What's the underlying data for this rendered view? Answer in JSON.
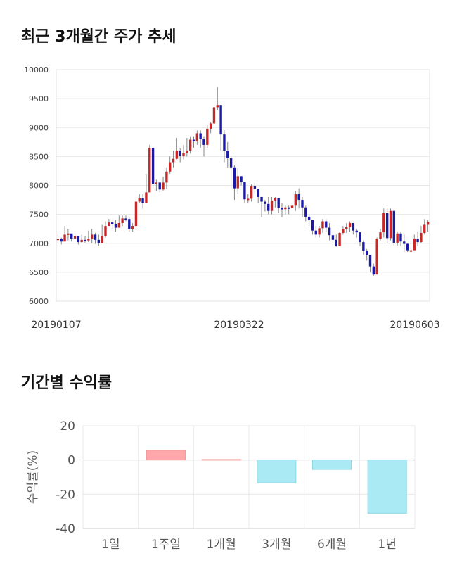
{
  "sections": {
    "price_title": "최근 3개월간 주가 추세",
    "returns_title": "기간별 수익률"
  },
  "chart_data": [
    {
      "type": "candlestick",
      "title": "최근 3개월간 주가 추세",
      "ylim": [
        6000,
        10000
      ],
      "yticks": [
        6000,
        6500,
        7000,
        7500,
        8000,
        8500,
        9000,
        9500,
        10000
      ],
      "x_labels": [
        "20190107",
        "20190322",
        "20190603"
      ],
      "grid": true,
      "colors": {
        "up": "#c62828",
        "down": "#1a1aa6",
        "wick": "#888888"
      },
      "close": [
        7080,
        7030,
        7150,
        7170,
        7080,
        7120,
        7020,
        7060,
        7050,
        7080,
        7150,
        7060,
        7000,
        7120,
        7300,
        7360,
        7330,
        7270,
        7350,
        7430,
        7420,
        7250,
        7300,
        7720,
        7780,
        7700,
        7880,
        8650,
        8030,
        8050,
        7930,
        8050,
        8240,
        8400,
        8460,
        8600,
        8510,
        8560,
        8600,
        8790,
        8760,
        8900,
        8800,
        8700,
        8980,
        9070,
        9350,
        9390,
        8880,
        8600,
        8470,
        8300,
        7950,
        8160,
        8060,
        7760,
        7770,
        7990,
        7940,
        7800,
        7720,
        7680,
        7560,
        7740,
        7780,
        7610,
        7590,
        7620,
        7610,
        7650,
        7850,
        7750,
        7620,
        7460,
        7400,
        7220,
        7150,
        7260,
        7380,
        7270,
        7140,
        7060,
        6950,
        7180,
        7250,
        7280,
        7350,
        7220,
        7190,
        7020,
        6870,
        6800,
        6600,
        6460,
        7080,
        7190,
        7520,
        7090,
        7560,
        7010,
        7170,
        7030,
        6990,
        6880,
        6880,
        7080,
        7020,
        7180,
        7320,
        7370
      ],
      "low": [
        7000,
        6980,
        7060,
        7050,
        7030,
        7030,
        6980,
        7000,
        7010,
        7020,
        7000,
        6990,
        6950,
        7000,
        7100,
        7300,
        7250,
        7200,
        7280,
        7300,
        7380,
        7200,
        7200,
        7250,
        7700,
        7600,
        7800,
        7950,
        7950,
        7900,
        7880,
        7900,
        7940,
        8200,
        8300,
        8450,
        8400,
        8450,
        8500,
        8550,
        8650,
        8700,
        8650,
        8500,
        8650,
        8900,
        9000,
        9300,
        8600,
        8400,
        8300,
        7950,
        7750,
        7850,
        8000,
        7700,
        7700,
        7720,
        7850,
        7700,
        7450,
        7550,
        7500,
        7500,
        7620,
        7520,
        7450,
        7500,
        7500,
        7520,
        7560,
        7600,
        7450,
        7380,
        7300,
        7150,
        7100,
        7100,
        7180,
        7200,
        7050,
        6950,
        6940,
        6970,
        7150,
        7180,
        7200,
        7150,
        7100,
        6950,
        6800,
        6700,
        6500,
        6440,
        6900,
        7050,
        7100,
        7000,
        7050,
        6950,
        6960,
        6950,
        6850,
        6850,
        6860,
        6900,
        6950,
        7000,
        7150,
        7200
      ],
      "high": [
        7150,
        7100,
        7300,
        7250,
        7160,
        7180,
        7100,
        7150,
        7120,
        7220,
        7250,
        7180,
        7150,
        7320,
        7380,
        7420,
        7420,
        7400,
        7480,
        7480,
        7480,
        7450,
        7350,
        7800,
        7850,
        7850,
        8200,
        8700,
        8100,
        8100,
        8050,
        8150,
        8300,
        8500,
        8600,
        8820,
        8650,
        8700,
        8820,
        8850,
        8850,
        8950,
        8950,
        8850,
        9050,
        9100,
        9400,
        9700,
        9350,
        8950,
        8750,
        8500,
        8350,
        8300,
        8150,
        8050,
        7850,
        8020,
        8050,
        7900,
        7800,
        7750,
        7800,
        7800,
        7800,
        7750,
        7700,
        7650,
        7650,
        7700,
        7900,
        7950,
        7800,
        7650,
        7500,
        7400,
        7300,
        7300,
        7420,
        7420,
        7350,
        7200,
        7150,
        7200,
        7300,
        7350,
        7380,
        7350,
        7250,
        7150,
        7050,
        6900,
        6750,
        6650,
        7100,
        7250,
        7600,
        7620,
        7600,
        7250,
        7200,
        7200,
        7150,
        7000,
        7050,
        7150,
        7200,
        7300,
        7420,
        7400
      ]
    },
    {
      "type": "bar",
      "title": "기간별 수익률",
      "categories": [
        "1일",
        "1주일",
        "1개월",
        "3개월",
        "6개월",
        "1년"
      ],
      "values": [
        0,
        5.6,
        0.3,
        -13.3,
        -5.5,
        -31.1
      ],
      "ylabel": "수익률(%)",
      "ylim": [
        -40,
        20
      ],
      "yticks": [
        20,
        0,
        -20,
        -40
      ],
      "grid": true,
      "colors": {
        "positive": "#ffa8ab",
        "negative": "#aaeaf4"
      }
    }
  ]
}
